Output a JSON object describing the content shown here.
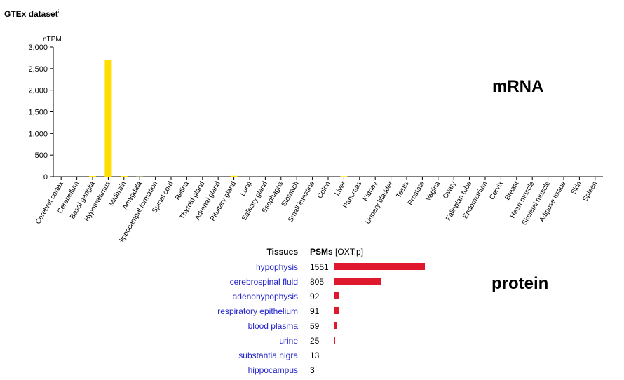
{
  "title": "GTEx dataset",
  "title_info": "i",
  "mrna_label": "mRNA",
  "protein_label": "protein",
  "colors": {
    "bar": "#ffdd00",
    "protein_bar": "#e0182d",
    "link": "#2222cc"
  },
  "chart_data": {
    "type": "bar",
    "ylabel": "nTPM",
    "ylim": [
      0,
      3000
    ],
    "yticks": [
      0,
      500,
      1000,
      1500,
      2000,
      2500,
      3000
    ],
    "ytick_labels": [
      "0",
      "500",
      "1,000",
      "1,500",
      "2,000",
      "2,500",
      "3,000"
    ],
    "grid": false,
    "categories": [
      "Cerebral cortex",
      "Cerebellum",
      "Basal ganglia",
      "Hypothalamus",
      "Midbrain",
      "Amygdala",
      "Hippocampal formation",
      "Spinal cord",
      "Retina",
      "Thyroid gland",
      "Adrenal gland",
      "Pituitary gland",
      "Lung",
      "Salivary gland",
      "Esophagus",
      "Stomach",
      "Small intestine",
      "Colon",
      "Liver",
      "Pancreas",
      "Kidney",
      "Urinary bladder",
      "Testis",
      "Prostate",
      "Vagina",
      "Ovary",
      "Fallopian tube",
      "Endometrium",
      "Cervix",
      "Breast",
      "Heart muscle",
      "Skeletal muscle",
      "Adipose tissue",
      "Skin",
      "Spleen"
    ],
    "values": [
      0,
      0,
      15,
      2700,
      15,
      3,
      0,
      0,
      0,
      0,
      0,
      20,
      0,
      0,
      0,
      0,
      0,
      0,
      10,
      0,
      0,
      0,
      0,
      0,
      0,
      0,
      0,
      0,
      0,
      0,
      0,
      0,
      0,
      0,
      0
    ]
  },
  "protein": {
    "header_tissues": "Tissues",
    "header_psms": "PSMs",
    "header_psms_sub": "[OXT:p]",
    "max": 1551,
    "rows": [
      {
        "name": "hypophysis",
        "psms": 1551
      },
      {
        "name": "cerebrospinal fluid",
        "psms": 805
      },
      {
        "name": "adenohypophysis",
        "psms": 92
      },
      {
        "name": "respiratory epithelium",
        "psms": 91
      },
      {
        "name": "blood plasma",
        "psms": 59
      },
      {
        "name": "urine",
        "psms": 25
      },
      {
        "name": "substantia nigra",
        "psms": 13
      },
      {
        "name": "hippocampus",
        "psms": 3
      }
    ]
  }
}
